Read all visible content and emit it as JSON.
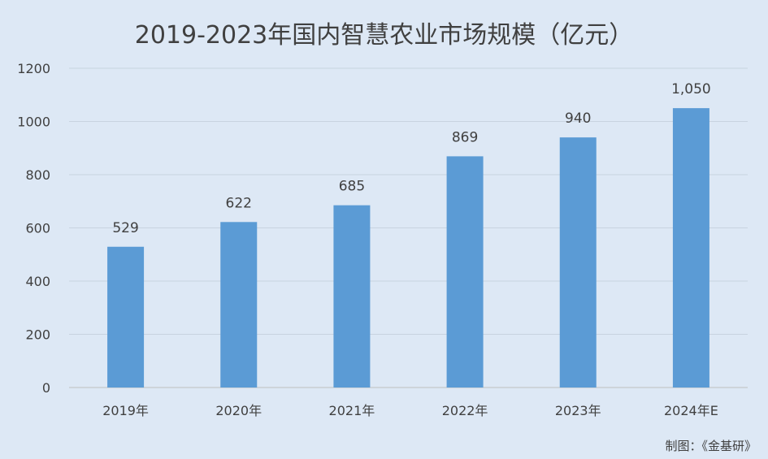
{
  "chart_data": {
    "type": "bar",
    "title": "2019-2023年国内智慧农业市场规模（亿元）",
    "categories": [
      "2019年",
      "2020年",
      "2021年",
      "2022年",
      "2023年",
      "2024年E"
    ],
    "values": [
      529,
      622,
      685,
      869,
      940,
      1050
    ],
    "data_labels": [
      "529",
      "622",
      "685",
      "869",
      "940",
      "1,050"
    ],
    "yticks": [
      "0",
      "200",
      "400",
      "600",
      "800",
      "1000",
      "1200"
    ],
    "ylim": [
      0,
      1200
    ],
    "grid": true,
    "bar_color": "#5b9bd5"
  },
  "source_note": "制图：《金基研》"
}
